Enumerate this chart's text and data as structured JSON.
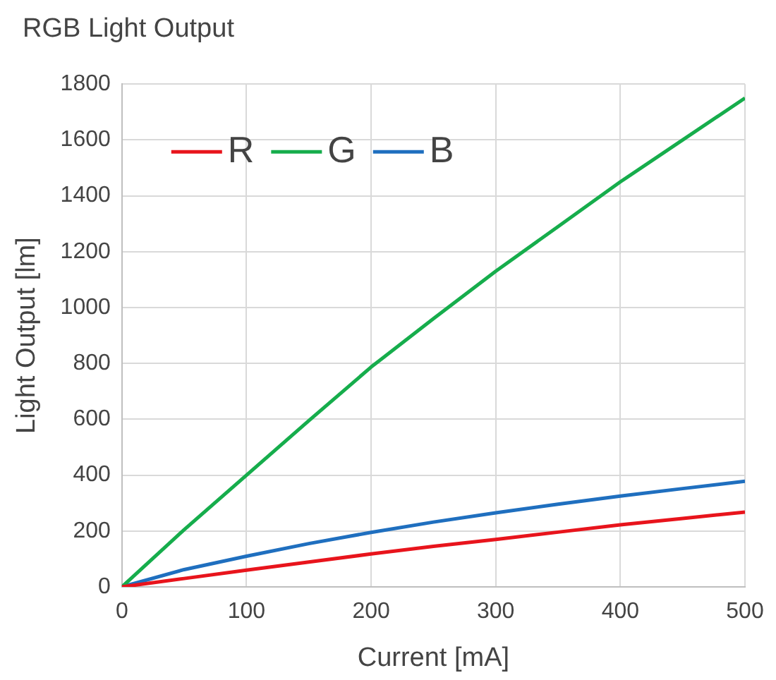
{
  "chart_data": {
    "type": "line",
    "title": "RGB Light Output",
    "xlabel": "Current [mA]",
    "ylabel": "Light Output [lm]",
    "x": [
      0,
      50,
      100,
      150,
      200,
      250,
      300,
      350,
      400,
      450,
      500
    ],
    "series": [
      {
        "name": "R",
        "color": "#e8141c",
        "values": [
          0,
          30,
          60,
          89,
          118,
          145,
          170,
          196,
          222,
          245,
          268
        ]
      },
      {
        "name": "G",
        "color": "#16ad4c",
        "values": [
          0,
          205,
          400,
          595,
          787,
          960,
          1130,
          1290,
          1450,
          1600,
          1750
        ]
      },
      {
        "name": "B",
        "color": "#1f6fbf",
        "values": [
          0,
          62,
          110,
          155,
          195,
          232,
          265,
          296,
          325,
          352,
          378
        ]
      }
    ],
    "xlim": [
      0,
      500
    ],
    "xticks": [
      0,
      100,
      200,
      300,
      400,
      500
    ],
    "ylim": [
      0,
      1800
    ],
    "yticks": [
      0,
      200,
      400,
      600,
      800,
      1000,
      1200,
      1400,
      1600,
      1800
    ],
    "grid": true,
    "legend": "top left",
    "marker": "none",
    "line_style": "solid"
  }
}
